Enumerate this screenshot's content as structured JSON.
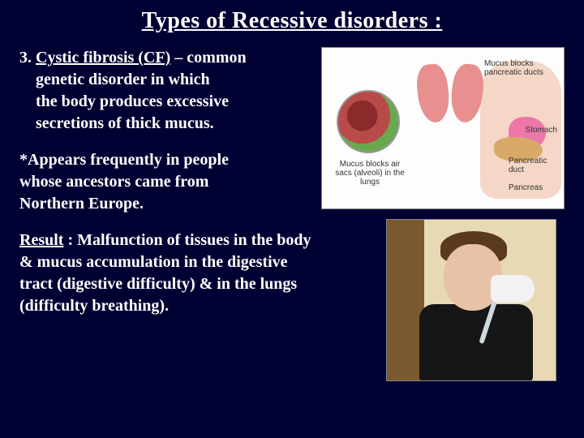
{
  "title": "Types of Recessive disorders :",
  "para1": {
    "num": "3.",
    "name": "Cystic fibrosis (CF)",
    "rest1": " – common",
    "line2": "genetic  disorder in which",
    "line3": "the body produces excessive",
    "line4": "secretions of thick mucus."
  },
  "para2": {
    "line1": "*Appears frequently in people",
    "line2": "whose ancestors came from",
    "line3": "Northern Europe."
  },
  "para3": {
    "lead": "Result",
    "rest": " : Malfunction of tissues in the body & mucus accumulation in the digestive tract (digestive difficulty) & in the lungs (difficulty breathing)."
  },
  "diagram": {
    "alveoli_label": "Mucus blocks air sacs (alveoli) in the lungs",
    "mucus_label": "Mucus blocks pancreatic ducts",
    "stomach_label": "Stomach",
    "pancreas_label": "Pancreatic duct",
    "pancreas_label2": "Pancreas"
  }
}
